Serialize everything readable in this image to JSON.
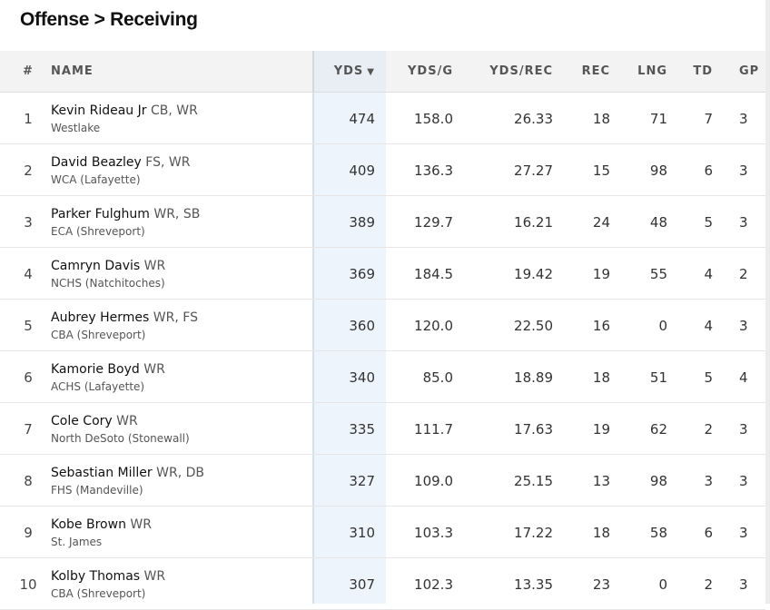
{
  "page": {
    "title": "Offense > Receiving"
  },
  "columns": {
    "rank": "#",
    "name": "NAME",
    "yds": "YDS",
    "yds_sort": "▼",
    "ydsg": "YDS/G",
    "ydsrec": "YDS/REC",
    "rec": "REC",
    "lng": "LNG",
    "td": "TD",
    "gp": "GP"
  },
  "rows": [
    {
      "rank": "1",
      "name": "Kevin Rideau Jr",
      "pos": "CB, WR",
      "school": "Westlake",
      "yds": "474",
      "ydsg": "158.0",
      "ydsrec": "26.33",
      "rec": "18",
      "lng": "71",
      "td": "7",
      "gp": "3"
    },
    {
      "rank": "2",
      "name": "David Beazley",
      "pos": "FS, WR",
      "school": "WCA (Lafayette)",
      "yds": "409",
      "ydsg": "136.3",
      "ydsrec": "27.27",
      "rec": "15",
      "lng": "98",
      "td": "6",
      "gp": "3"
    },
    {
      "rank": "3",
      "name": "Parker Fulghum",
      "pos": "WR, SB",
      "school": "ECA (Shreveport)",
      "yds": "389",
      "ydsg": "129.7",
      "ydsrec": "16.21",
      "rec": "24",
      "lng": "48",
      "td": "5",
      "gp": "3"
    },
    {
      "rank": "4",
      "name": "Camryn Davis",
      "pos": "WR",
      "school": "NCHS (Natchitoches)",
      "yds": "369",
      "ydsg": "184.5",
      "ydsrec": "19.42",
      "rec": "19",
      "lng": "55",
      "td": "4",
      "gp": "2"
    },
    {
      "rank": "5",
      "name": "Aubrey Hermes",
      "pos": "WR, FS",
      "school": "CBA (Shreveport)",
      "yds": "360",
      "ydsg": "120.0",
      "ydsrec": "22.50",
      "rec": "16",
      "lng": "0",
      "td": "4",
      "gp": "3"
    },
    {
      "rank": "6",
      "name": "Kamorie Boyd",
      "pos": "WR",
      "school": "ACHS (Lafayette)",
      "yds": "340",
      "ydsg": "85.0",
      "ydsrec": "18.89",
      "rec": "18",
      "lng": "51",
      "td": "5",
      "gp": "4"
    },
    {
      "rank": "7",
      "name": "Cole Cory",
      "pos": "WR",
      "school": "North DeSoto (Stonewall)",
      "yds": "335",
      "ydsg": "111.7",
      "ydsrec": "17.63",
      "rec": "19",
      "lng": "62",
      "td": "2",
      "gp": "3"
    },
    {
      "rank": "8",
      "name": "Sebastian Miller",
      "pos": "WR, DB",
      "school": "FHS (Mandeville)",
      "yds": "327",
      "ydsg": "109.0",
      "ydsrec": "25.15",
      "rec": "13",
      "lng": "98",
      "td": "3",
      "gp": "3"
    },
    {
      "rank": "9",
      "name": "Kobe Brown",
      "pos": "WR",
      "school": "St. James",
      "yds": "310",
      "ydsg": "103.3",
      "ydsrec": "17.22",
      "rec": "18",
      "lng": "58",
      "td": "6",
      "gp": "3"
    },
    {
      "rank": "10",
      "name": "Kolby Thomas",
      "pos": "WR",
      "school": "CBA (Shreveport)",
      "yds": "307",
      "ydsg": "102.3",
      "ydsrec": "13.35",
      "rec": "23",
      "lng": "0",
      "td": "2",
      "gp": "3"
    }
  ]
}
